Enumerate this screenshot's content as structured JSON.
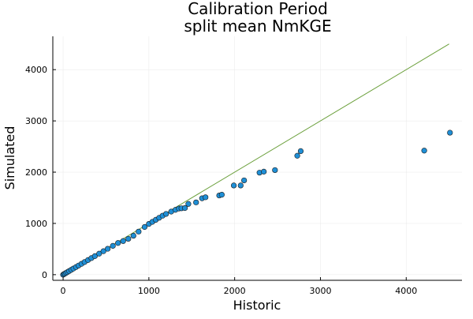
{
  "chart_data": {
    "type": "scatter",
    "title": "Calibration Period",
    "subtitle": "split mean NmKGE",
    "xlabel": "Historic",
    "ylabel": "Simulated",
    "xlim": [
      -120,
      4650
    ],
    "ylim": [
      -110,
      4650
    ],
    "x_ticks": [
      0,
      1000,
      2000,
      3000,
      4000
    ],
    "y_ticks": [
      0,
      1000,
      2000,
      3000,
      4000
    ],
    "x_tick_labels": [
      "0",
      "1000",
      "2000",
      "3000",
      "4000"
    ],
    "y_tick_labels": [
      "0",
      "1000",
      "2000",
      "3000",
      "4000"
    ],
    "grid": true,
    "legend": "none",
    "colors": {
      "points": "#1f8fd6",
      "point_stroke": "#1a1a1a",
      "reference_line": "#6a9f3a",
      "grid": "#e8e8e8",
      "axis": "#000000"
    },
    "reference_line": {
      "x": [
        0,
        4500
      ],
      "y": [
        0,
        4500
      ]
    },
    "series": [
      {
        "x": [
          0,
          10,
          20,
          35,
          50,
          70,
          95,
          120,
          150,
          180,
          215,
          250,
          290,
          330,
          370,
          420,
          470,
          520,
          580,
          640,
          700,
          760,
          820,
          880,
          950,
          1000,
          1040,
          1080,
          1120,
          1160,
          1200,
          1260,
          1310,
          1350,
          1380,
          1420,
          1460,
          1550,
          1620,
          1660,
          1820,
          1850,
          1990,
          2070,
          2110,
          2290,
          2340,
          2470,
          2730,
          2770,
          4210,
          4510
        ],
        "y": [
          0,
          10,
          20,
          35,
          50,
          70,
          95,
          120,
          148,
          178,
          212,
          246,
          285,
          323,
          362,
          410,
          458,
          505,
          562,
          618,
          656,
          700,
          760,
          840,
          930,
          990,
          1030,
          1070,
          1110,
          1150,
          1185,
          1230,
          1265,
          1290,
          1295,
          1300,
          1380,
          1410,
          1490,
          1510,
          1545,
          1560,
          1740,
          1740,
          1840,
          1990,
          2010,
          2040,
          2320,
          2410,
          2420,
          2770
        ]
      }
    ]
  }
}
